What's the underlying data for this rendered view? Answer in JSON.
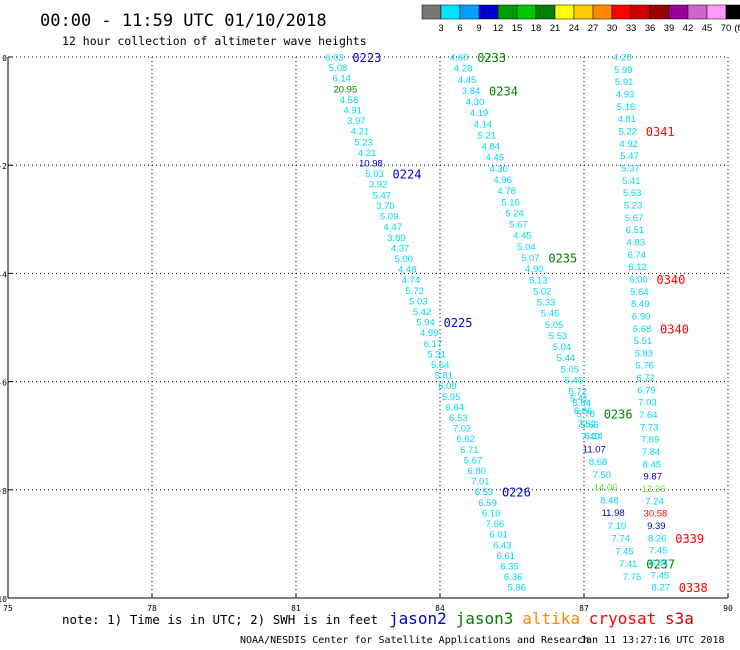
{
  "header": {
    "title": "00:00 - 11:59 UTC 01/10/2018",
    "subtitle": "12 hour collection of altimeter wave heights"
  },
  "colorbar": {
    "ticks": [
      "3",
      "6",
      "9",
      "12",
      "15",
      "18",
      "21",
      "24",
      "27",
      "30",
      "33",
      "36",
      "39",
      "42",
      "45",
      "70"
    ],
    "unit": "(ft)",
    "colors": [
      "#777777",
      "#00e5ff",
      "#00a0ff",
      "#0000cc",
      "#009900",
      "#00c800",
      "#008000",
      "#ffff00",
      "#ffcc00",
      "#ff8800",
      "#ff0000",
      "#cc0000",
      "#990000",
      "#990099",
      "#cc66cc",
      "#ff99ff",
      "#000000"
    ]
  },
  "footer": {
    "note": "note:  1) Time is in UTC; 2) SWH is in feet",
    "legend": [
      {
        "label": "jason2",
        "color": "#0000cc"
      },
      {
        "label": "jason3",
        "color": "#008000"
      },
      {
        "label": "altika",
        "color": "#ff8800"
      },
      {
        "label": "cryosat",
        "color": "#ff0000"
      },
      {
        "label": "s3a",
        "color": "#cc0000"
      }
    ],
    "credit": "NOAA/NESDIS Center for Satellite Applications and Research",
    "timestamp": "Jan 11 13:27:16 UTC 2018"
  },
  "chart_data": {
    "type": "scatter",
    "xlim": [
      75,
      90
    ],
    "ylim": [
      -10,
      0
    ],
    "x_ticks": [
      "75",
      "78",
      "81",
      "84",
      "87",
      "90"
    ],
    "y_ticks": [
      "0",
      "-2",
      "-4",
      "-6",
      "-8",
      "-10"
    ],
    "grid": true,
    "tracks": [
      {
        "satellite": "jason2",
        "color": "#00d8f0",
        "start": [
          81.8,
          0
        ],
        "end": [
          85.6,
          -9.8
        ],
        "values": [
          "6.03",
          "5.08",
          "6.14",
          "20.95",
          "4.58",
          "4.91",
          "3.97",
          "4.21",
          "5.23",
          "4.21",
          "10.98",
          "5.03",
          "3.92",
          "5.47",
          "3.70",
          "5.09",
          "4.47",
          "3.89",
          "4.37",
          "5.00",
          "4.48",
          "4.74",
          "5.72",
          "5.03",
          "5.42",
          "5.94",
          "4.99",
          "6.17",
          "5.31",
          "5.64",
          "5.81",
          "6.09",
          "5.95",
          "6.64",
          "6.53",
          "7.02",
          "6.62",
          "6.71",
          "5.67",
          "6.80",
          "7.01",
          "6.53",
          "6.59",
          "6.10",
          "7.66",
          "6.01",
          "6.43",
          "6.61",
          "6.35",
          "6.36",
          "5.86"
        ],
        "value_colors": {
          "3": "#008000",
          "10": "#0000cc"
        },
        "time_labels": [
          {
            "text": "0223",
            "color": "#0000cc",
            "index": 0
          },
          {
            "text": "0224",
            "color": "#0000cc",
            "index": 11
          },
          {
            "text": "0225",
            "color": "#0000cc",
            "index": 25
          },
          {
            "text": "0226",
            "color": "#0000cc",
            "index": 41
          }
        ]
      },
      {
        "satellite": "jason3",
        "color": "#00d8f0",
        "start": [
          84.4,
          0
        ],
        "end": [
          87.2,
          -7.0
        ],
        "values": [
          "4.60",
          "4.28",
          "4.45",
          "3.84",
          "4.30",
          "4.19",
          "4.14",
          "5.21",
          "4.84",
          "4.45",
          "4.30",
          "4.96",
          "4.78",
          "5.16",
          "5.24",
          "5.67",
          "4.45",
          "5.04",
          "5.07",
          "4.90",
          "5.13",
          "5.02",
          "5.33",
          "5.45",
          "5.05",
          "5.53",
          "5.04",
          "5.44",
          "5.05",
          "5.46",
          "5.72",
          "5.64",
          "5.78",
          "5.66",
          "6.14"
        ],
        "value_colors": {},
        "time_labels": [
          {
            "text": "0233",
            "color": "#008000",
            "index": 0
          },
          {
            "text": "0234",
            "color": "#008000",
            "index": 3
          },
          {
            "text": "0235",
            "color": "#008000",
            "index": 18
          },
          {
            "text": "0236",
            "color": "#008000",
            "index": 32
          }
        ]
      },
      {
        "satellite": "jason3-b",
        "color": "#00d8f0",
        "start": [
          86.9,
          -6.3
        ],
        "end": [
          88.0,
          -9.6
        ],
        "values": [
          "5.41",
          "6.86",
          "7.52",
          "7.40",
          "11.07",
          "8.68",
          "7.50",
          "14.06",
          "8.48",
          "11.98",
          "7.10",
          "7.74",
          "7.45",
          "7.41",
          "7.75"
        ],
        "value_colors": {
          "4": "#0000cc",
          "7": "#66dd33",
          "9": "#0000cc"
        },
        "time_labels": [
          {
            "text": "0237",
            "color": "#008000",
            "index": 13
          }
        ]
      },
      {
        "satellite": "s3a",
        "color": "#00d8f0",
        "start": [
          87.8,
          0
        ],
        "end": [
          88.6,
          -9.8
        ],
        "values": [
          "4.28",
          "5.99",
          "5.91",
          "4.93",
          "5.16",
          "4.81",
          "5.22",
          "4.92",
          "5.47",
          "5.37",
          "5.41",
          "5.63",
          "5.23",
          "5.67",
          "6.51",
          "4.83",
          "6.74",
          "6.12",
          "6.00",
          "5.64",
          "8.49",
          "6.90",
          "6.68",
          "5.51",
          "5.83",
          "5.76",
          "6.72",
          "6.79",
          "7.03",
          "7.64",
          "7.73",
          "7.69",
          "7.84",
          "8.45",
          "9.87",
          "12.36",
          "7.24",
          "30.58",
          "9.39",
          "8.26",
          "7.45",
          "6.84",
          "7.45",
          "8.27"
        ],
        "value_colors": {
          "34": "#0000cc",
          "35": "#66dd33",
          "37": "#ff0000",
          "38": "#0000cc"
        },
        "time_labels": [
          {
            "text": "0341",
            "color": "#ff0000",
            "index": 6
          },
          {
            "text": "0340",
            "color": "#ff0000",
            "index": 18
          },
          {
            "text": "0340",
            "color": "#ff0000",
            "index": 22
          },
          {
            "text": "0339",
            "color": "#ff0000",
            "index": 39
          },
          {
            "text": "0338",
            "color": "#ff0000",
            "index": 43
          }
        ]
      }
    ]
  }
}
